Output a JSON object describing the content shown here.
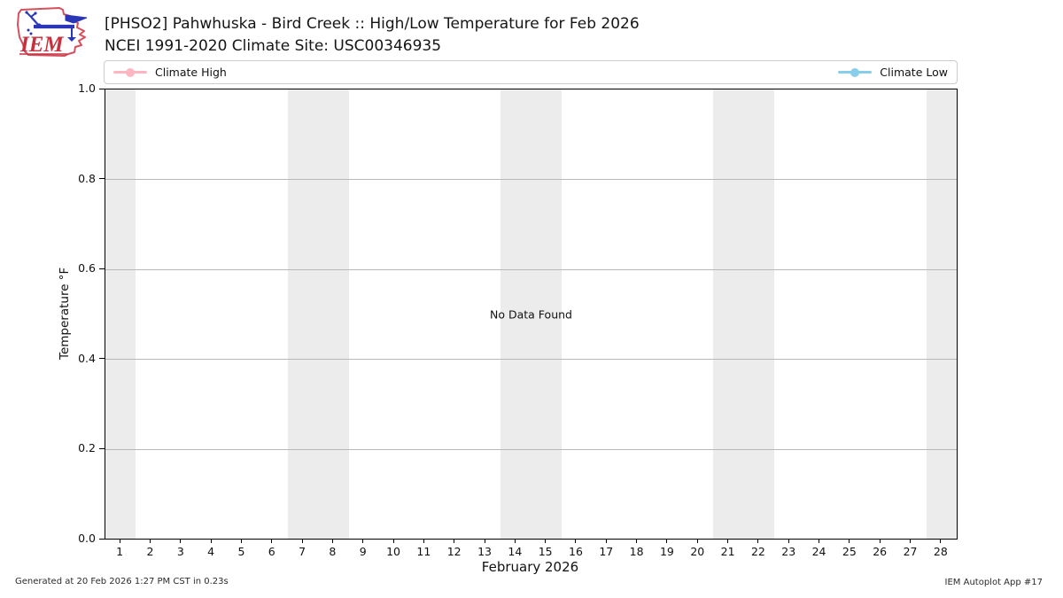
{
  "logo": {
    "text": "IEM"
  },
  "header": {
    "title": "[PHSO2] Pahwhuska - Bird Creek :: High/Low Temperature for Feb 2026",
    "subtitle": "NCEI 1991-2020 Climate Site: USC00346935"
  },
  "legend": {
    "entries": [
      {
        "label": "Climate High",
        "color": "#ffb6c1"
      },
      {
        "label": "Climate Low",
        "color": "#87ceeb"
      }
    ]
  },
  "chart_data": {
    "type": "line",
    "title": "[PHSO2] Pahwhuska - Bird Creek :: High/Low Temperature for Feb 2026",
    "subtitle": "NCEI 1991-2020 Climate Site: USC00346935",
    "xlabel": "February 2026",
    "ylabel": "Temperature °F",
    "xlim": [
      0.5,
      28.5
    ],
    "ylim": [
      0.0,
      1.0
    ],
    "yticks": [
      "0.0",
      "0.2",
      "0.4",
      "0.6",
      "0.8",
      "1.0"
    ],
    "xticks": [
      1,
      2,
      3,
      4,
      5,
      6,
      7,
      8,
      9,
      10,
      11,
      12,
      13,
      14,
      15,
      16,
      17,
      18,
      19,
      20,
      21,
      22,
      23,
      24,
      25,
      26,
      27,
      28
    ],
    "grid": "horizontal-only",
    "legend_position": "top-expanded",
    "no_data_text": "No Data Found",
    "series": [
      {
        "name": "Climate High",
        "color": "#ffb6c1",
        "x": [],
        "values": []
      },
      {
        "name": "Climate Low",
        "color": "#87ceeb",
        "x": [],
        "values": []
      }
    ],
    "weekend_shading": {
      "color": "#ececec",
      "day_spans": [
        [
          0.5,
          1.5
        ],
        [
          6.5,
          8.5
        ],
        [
          13.5,
          15.5
        ],
        [
          20.5,
          22.5
        ],
        [
          27.5,
          28.5
        ]
      ]
    }
  },
  "footer": {
    "generated_text": "Generated at 20 Feb 2026 1:27 PM CST in 0.23s",
    "app_text": "IEM Autoplot App #17"
  }
}
